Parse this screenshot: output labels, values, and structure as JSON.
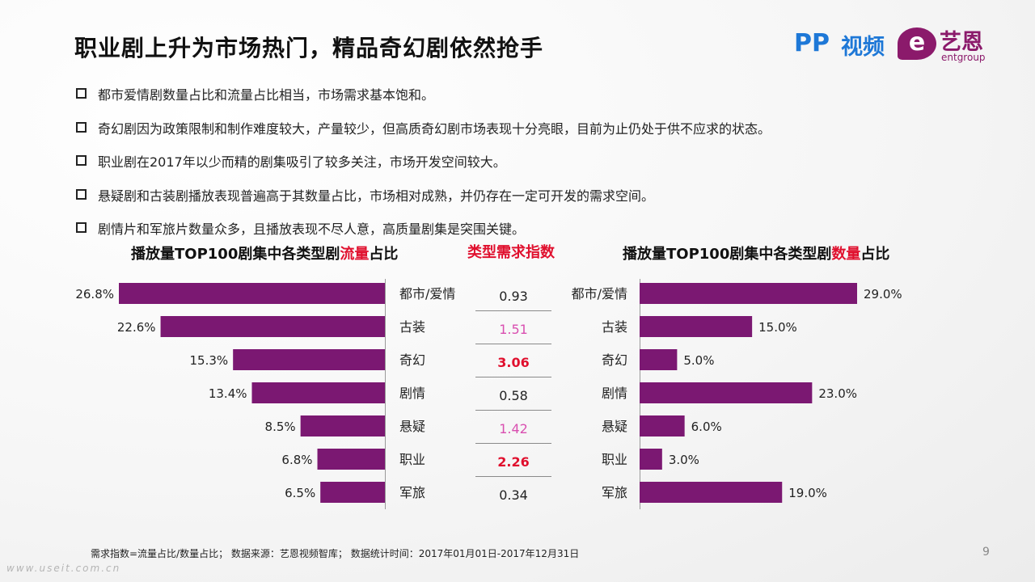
{
  "title": "职业剧上升为市场热门，精品奇幻剧依然抢手",
  "logo": {
    "pp": "PP",
    "pp_text": "视频",
    "e": "e",
    "yi": "艺恩",
    "ent": "entgroup"
  },
  "bullets": [
    "都市爱情剧数量占比和流量占比相当，市场需求基本饱和。",
    "奇幻剧因为政策限制和制作难度较大，产量较少，但高质奇幻剧市场表现十分亮眼，目前为止仍处于供不应求的状态。",
    "职业剧在2017年以少而精的剧集吸引了较多关注，市场开发空间较大。",
    "悬疑剧和古装剧播放表现普遍高于其数量占比，市场相对成熟，并仍存在一定可开发的需求空间。",
    "剧情片和军旅片数量众多，且播放表现不尽人意，高质量剧集是突围关键。"
  ],
  "left_title": {
    "pre": "播放量TOP100剧集中各类型剧",
    "hl": "流量",
    "post": "占比"
  },
  "center_title": "类型需求指数",
  "right_title": {
    "pre": "播放量TOP100剧集中各类型剧",
    "hl": "数量",
    "post": "占比"
  },
  "footnote": "需求指数=流量占比/数量占比；  数据来源：艺恩视频智库；  数据统计时间：2017年01月01日-2017年12月31日",
  "page_number": "9",
  "watermark": "www.useit.com.cn",
  "colors": {
    "bar": "#7b1872",
    "red": "#e0102e",
    "pink": "#d94fb0",
    "normal": "#222222"
  },
  "chart_data": [
    {
      "type": "bar",
      "title": "播放量TOP100剧集中各类型剧流量占比",
      "orientation": "horizontal-reversed",
      "categories": [
        "都市/爱情",
        "古装",
        "奇幻",
        "剧情",
        "悬疑",
        "职业",
        "军旅"
      ],
      "values": [
        26.8,
        22.6,
        15.3,
        13.4,
        8.5,
        6.8,
        6.5
      ],
      "labels": [
        "26.8%",
        "22.6%",
        "15.3%",
        "13.4%",
        "8.5%",
        "6.8%",
        "6.5%"
      ],
      "unit": "%"
    },
    {
      "type": "table",
      "title": "类型需求指数",
      "categories": [
        "都市/爱情",
        "古装",
        "奇幻",
        "剧情",
        "悬疑",
        "职业",
        "军旅"
      ],
      "values": [
        0.93,
        1.51,
        3.06,
        0.58,
        1.42,
        2.26,
        0.34
      ],
      "labels": [
        "0.93",
        "1.51",
        "3.06",
        "0.58",
        "1.42",
        "2.26",
        "0.34"
      ],
      "styles": [
        "normal",
        "pink",
        "red",
        "normal",
        "pink",
        "red",
        "normal"
      ]
    },
    {
      "type": "bar",
      "title": "播放量TOP100剧集中各类型剧数量占比",
      "orientation": "horizontal",
      "categories": [
        "都市/爱情",
        "古装",
        "奇幻",
        "剧情",
        "悬疑",
        "职业",
        "军旅"
      ],
      "values": [
        29.0,
        15.0,
        5.0,
        23.0,
        6.0,
        3.0,
        19.0
      ],
      "labels": [
        "29.0%",
        "15.0%",
        "5.0%",
        "23.0%",
        "6.0%",
        "3.0%",
        "19.0%"
      ],
      "unit": "%"
    }
  ]
}
